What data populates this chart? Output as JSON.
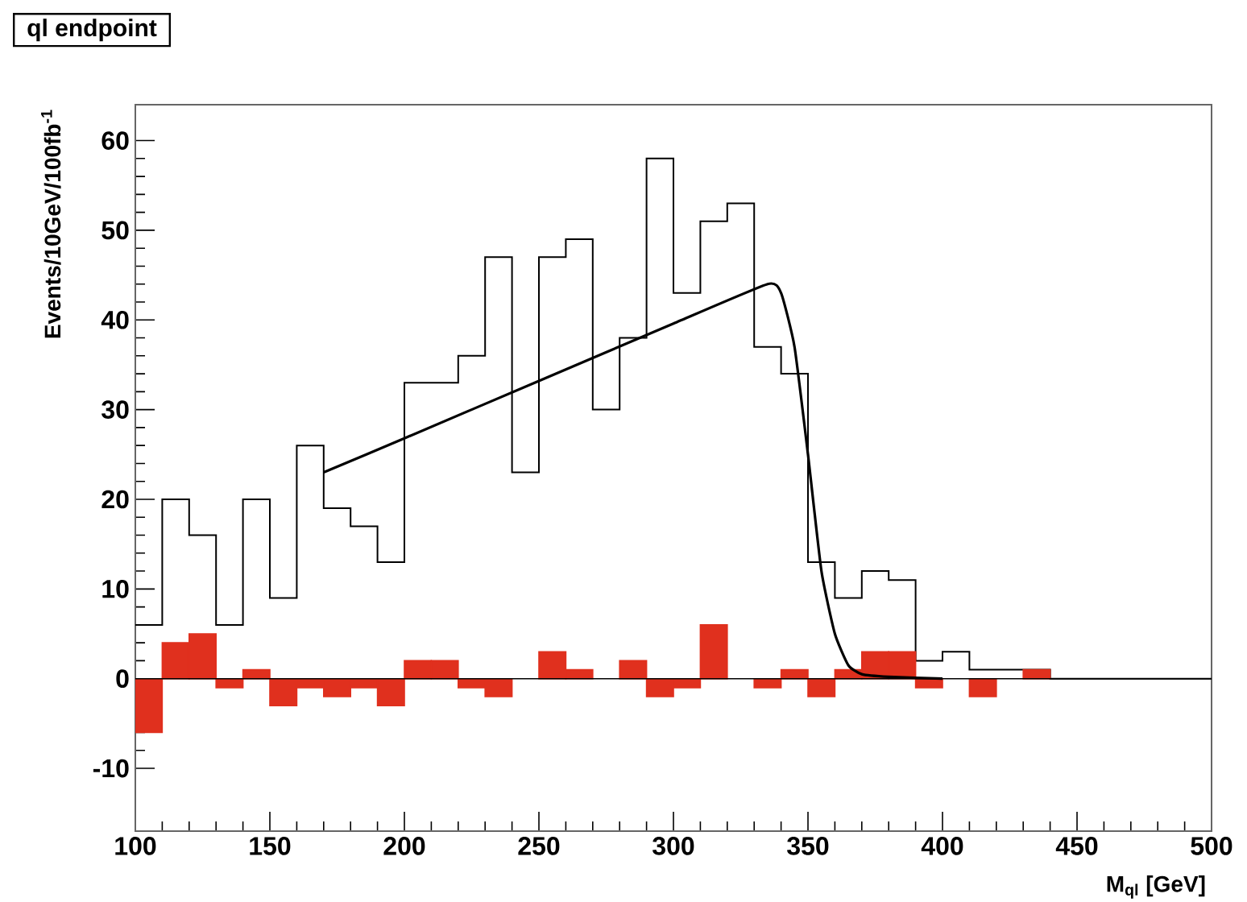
{
  "chart_data": {
    "type": "histogram",
    "title": "ql endpoint",
    "xlabel": "M$_{ql}$ [GeV]",
    "ylabel": "Events/10GeV/100fb$^{-1}$",
    "bins": [
      100,
      110,
      120,
      130,
      140,
      150,
      160,
      170,
      180,
      190,
      200,
      210,
      220,
      230,
      240,
      250,
      260,
      270,
      280,
      290,
      300,
      310,
      320,
      330,
      340,
      350,
      360,
      370,
      380,
      390,
      400,
      410,
      420,
      430,
      440,
      450,
      460,
      470,
      480,
      490,
      500
    ],
    "series": [
      {
        "type": "step",
        "color": "#000000",
        "x": [
          100,
          110,
          120,
          130,
          140,
          150,
          160,
          170,
          180,
          190,
          200,
          210,
          220,
          230,
          240,
          250,
          260,
          270,
          280,
          290,
          300,
          310,
          320,
          330,
          340,
          350,
          360,
          370,
          380,
          390,
          400,
          410,
          420,
          430,
          440,
          450,
          460,
          470,
          480,
          490,
          500
        ],
        "values": [
          6,
          20,
          16,
          6,
          20,
          9,
          26,
          19,
          17,
          13,
          33,
          33,
          36,
          47,
          23,
          47,
          49,
          30,
          38,
          58,
          43,
          51,
          53,
          37,
          34,
          13,
          9,
          12,
          11,
          2,
          3,
          1,
          1,
          1,
          0,
          0,
          0,
          0,
          0,
          0,
          0
        ]
      },
      {
        "color": "#e0301e",
        "values": [
          -6,
          4,
          5,
          -1,
          1,
          -3,
          -1,
          -2,
          -1,
          -3,
          2,
          2,
          -1,
          -2,
          null,
          3,
          1,
          null,
          2,
          -2,
          -1,
          6,
          0,
          -1,
          1,
          -2,
          1,
          3,
          3,
          -1,
          0,
          -2,
          0,
          1,
          0,
          0,
          0,
          0,
          0,
          0
        ]
      },
      {
        "type": "line",
        "color": "#000000",
        "x": [
          170,
          200,
          250,
          300,
          335,
          340,
          345,
          350,
          355,
          360,
          365,
          370,
          380,
          400
        ],
        "values": [
          23,
          26.8,
          33.2,
          39.6,
          44,
          43,
          37,
          25,
          12,
          5,
          1.5,
          0.5,
          0.2,
          0
        ]
      }
    ],
    "xlim": [
      100,
      500
    ],
    "ylim": [
      -17,
      64
    ],
    "xticks": [
      100,
      150,
      200,
      250,
      300,
      350,
      400,
      450,
      500
    ],
    "yticks": [
      -10,
      0,
      10,
      20,
      30,
      40,
      50,
      60
    ],
    "ref_lines": [
      {
        "axis": "y",
        "value": 0,
        "color": "#000000"
      }
    ]
  }
}
